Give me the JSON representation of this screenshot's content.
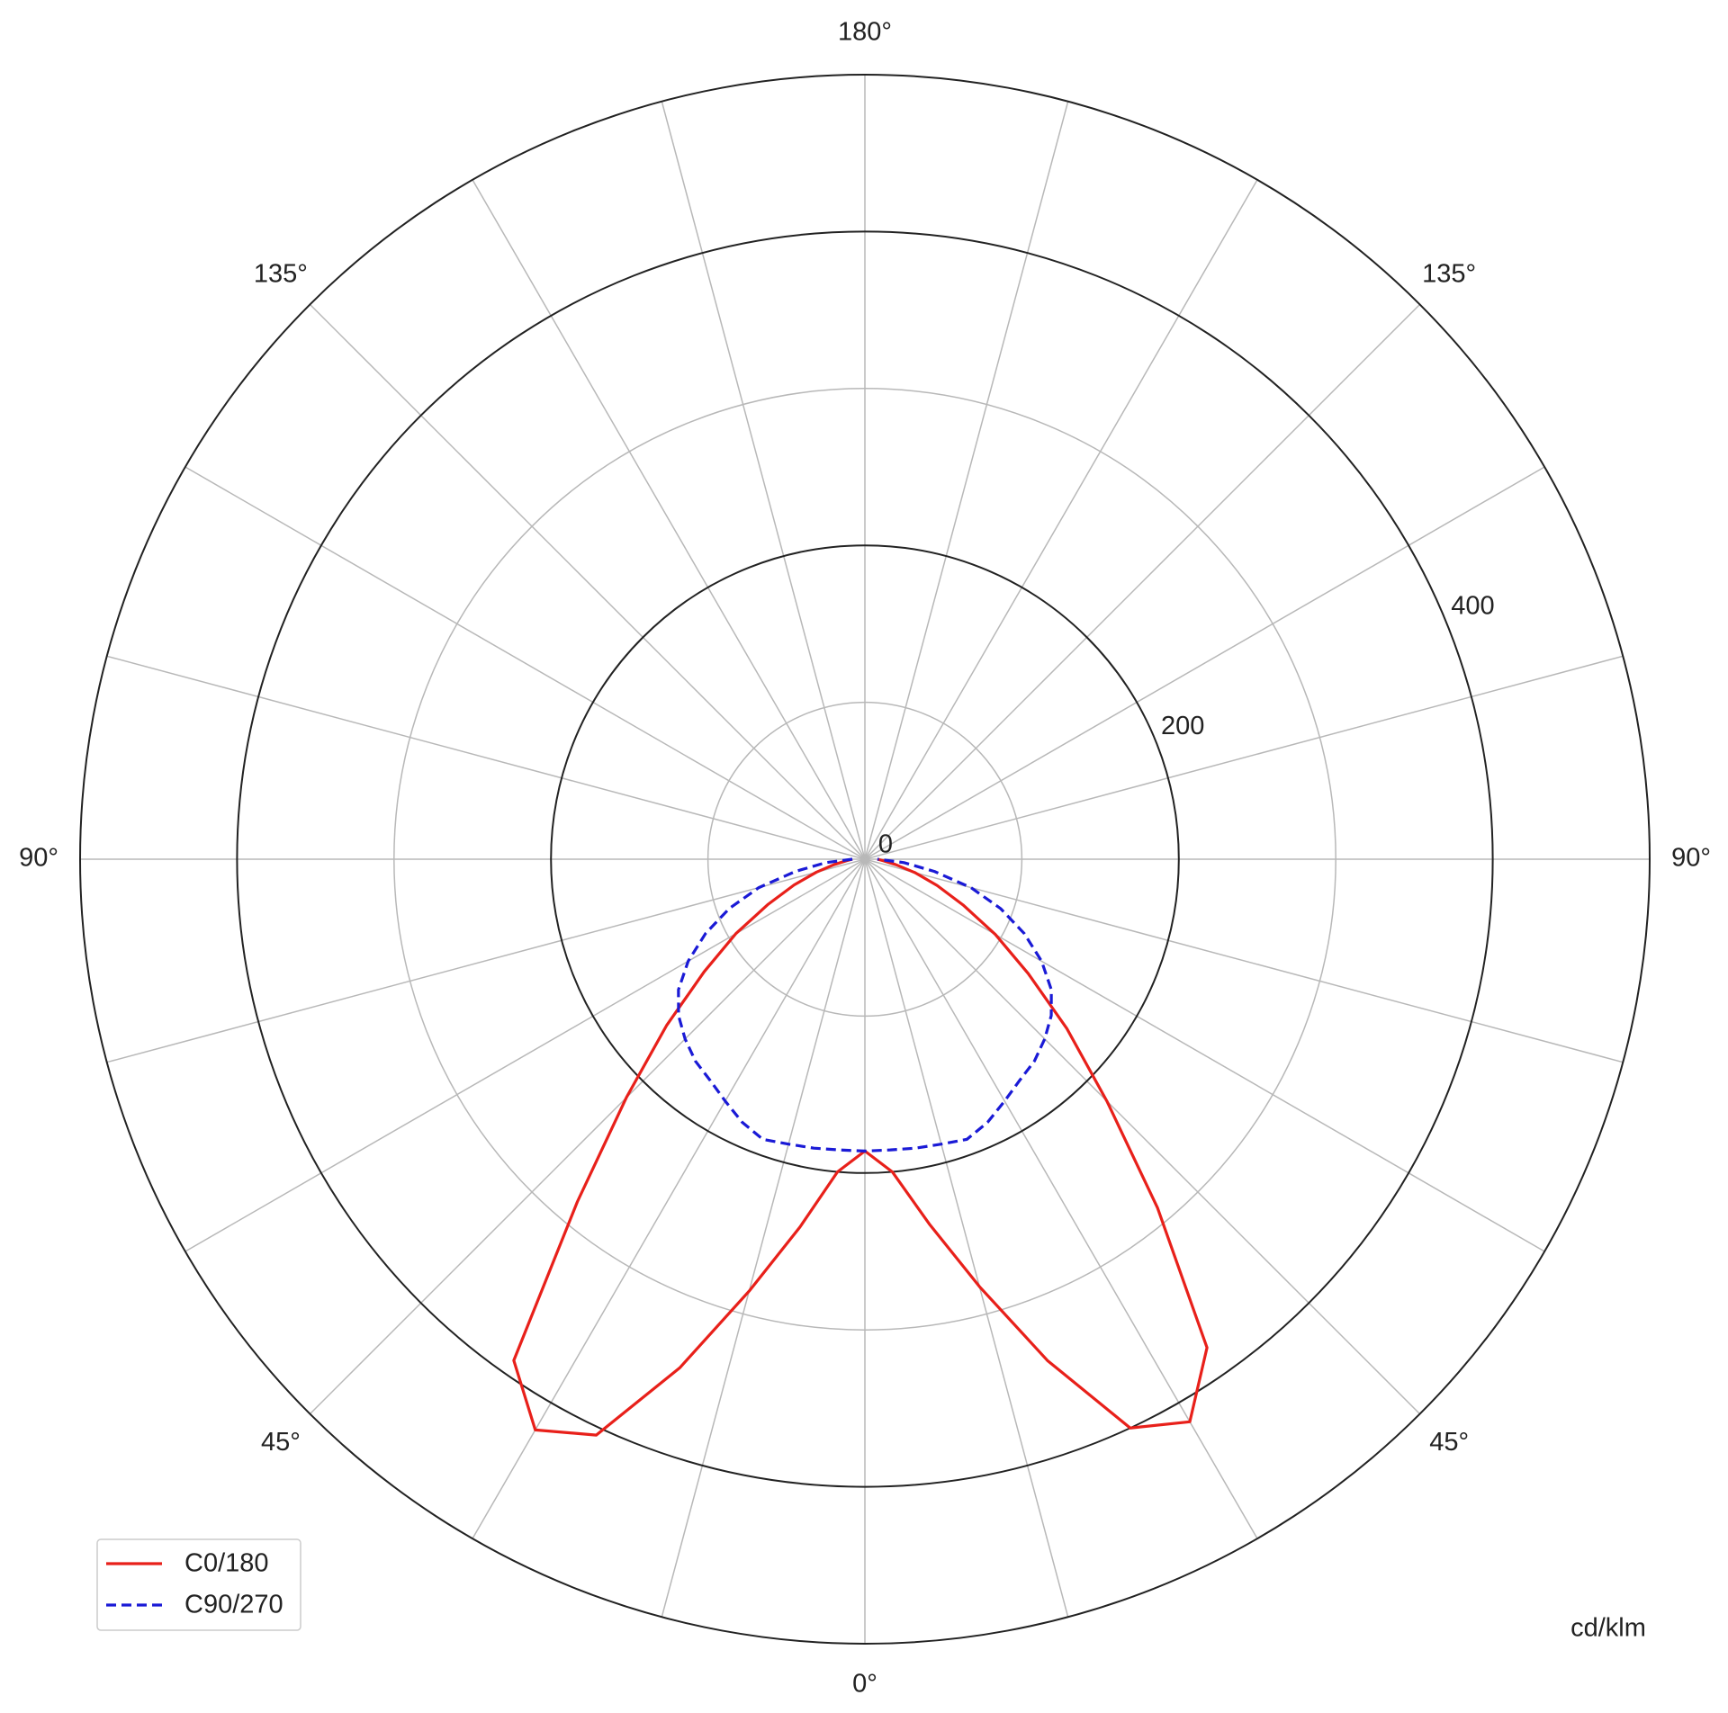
{
  "chart_data": {
    "type": "polar",
    "unit_label": "cd/klm",
    "x": [
      -90,
      -85,
      -80,
      -75,
      -70,
      -65,
      -60,
      -55,
      -50,
      -45,
      -40,
      -35,
      -30,
      -25,
      -20,
      -15,
      -10,
      -5,
      0,
      5,
      10,
      15,
      20,
      25,
      30,
      35,
      40,
      45,
      50,
      55,
      60,
      65,
      70,
      75,
      80,
      85,
      90
    ],
    "series": [
      {
        "name": "C0/180",
        "color": "#e8201a",
        "dash": false,
        "values": [
          8,
          12,
          20,
          32,
          48,
          68,
          95,
          125,
          165,
          215,
          285,
          390,
          420,
          405,
          345,
          285,
          238,
          200,
          186,
          200,
          236,
          282,
          340,
          400,
          414,
          380,
          290,
          218,
          168,
          127,
          96,
          69,
          49,
          33,
          20,
          12,
          8
        ]
      },
      {
        "name": "C90/270",
        "color": "#1a1ad6",
        "dash": true,
        "values": [
          8,
          25,
          45,
          70,
          92,
          112,
          130,
          145,
          155,
          162,
          168,
          172,
          178,
          185,
          190,
          188,
          187,
          186,
          186,
          186,
          187,
          188,
          190,
          185,
          178,
          172,
          168,
          162,
          155,
          145,
          130,
          112,
          92,
          70,
          45,
          25,
          8
        ]
      }
    ],
    "ylim": [
      0,
      500
    ],
    "yticks": [
      0,
      200,
      400
    ],
    "minor_rings": [
      100,
      300
    ],
    "spokes": [
      0,
      15,
      30,
      45,
      60,
      75,
      90,
      105,
      120,
      135,
      150,
      165
    ],
    "xticks": [
      {
        "value": 0,
        "label": "0°"
      },
      {
        "value": 45,
        "label": "45°"
      },
      {
        "value": 90,
        "label": "90°"
      },
      {
        "value": 135,
        "label": "135°"
      },
      {
        "value": 180,
        "label": "180°"
      }
    ],
    "legend": "lower left"
  }
}
